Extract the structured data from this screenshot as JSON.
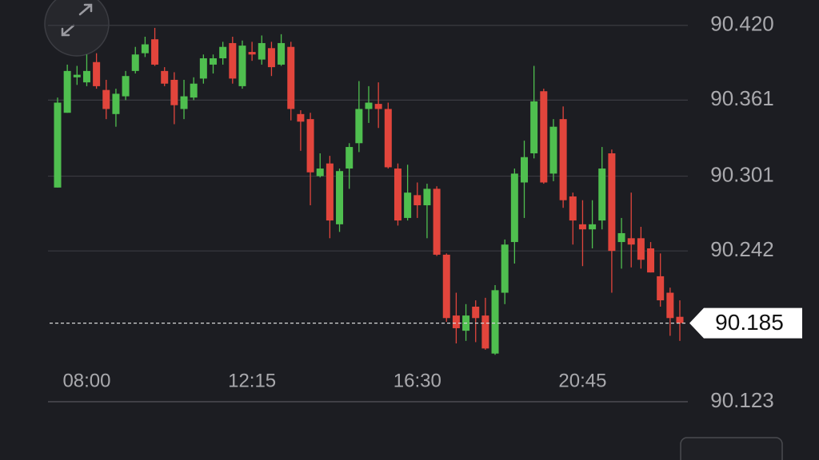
{
  "chart_data": {
    "type": "candlestick",
    "categories": [
      null,
      null,
      null,
      "08:00",
      null,
      null,
      null,
      null,
      null,
      null,
      null,
      null,
      null,
      null,
      null,
      null,
      null,
      null,
      null,
      null,
      "12:15",
      null,
      null,
      null,
      null,
      null,
      null,
      null,
      null,
      null,
      null,
      null,
      null,
      null,
      null,
      null,
      null,
      "16:30",
      null,
      null,
      null,
      null,
      null,
      null,
      null,
      null,
      null,
      null,
      null,
      null,
      null,
      null,
      null,
      null,
      "20:45",
      null,
      null,
      null,
      null,
      null,
      null,
      null,
      null,
      null,
      null
    ],
    "open": [
      90.292,
      90.351,
      90.379,
      90.375,
      90.391,
      90.369,
      90.35,
      90.364,
      90.384,
      90.398,
      90.409,
      90.384,
      90.377,
      90.354,
      90.363,
      90.378,
      90.389,
      90.394,
      90.406,
      90.372,
      90.399,
      90.393,
      90.402,
      90.389,
      90.403,
      90.35,
      90.346,
      90.301,
      90.311,
      90.263,
      90.307,
      90.327,
      90.354,
      90.358,
      90.354,
      90.307,
      90.268,
      90.286,
      90.278,
      90.291,
      90.239,
      90.191,
      90.179,
      90.198,
      90.191,
      90.161,
      90.209,
      90.249,
      90.296,
      90.319,
      90.368,
      90.303,
      90.346,
      90.285,
      90.263,
      90.259,
      90.266,
      90.319,
      90.249,
      90.252,
      90.252,
      90.244,
      90.222,
      90.209,
      90.19
    ],
    "high": [
      90.363,
      90.389,
      90.388,
      90.397,
      90.398,
      90.377,
      90.37,
      90.384,
      90.403,
      90.411,
      90.418,
      90.387,
      90.383,
      90.377,
      90.379,
      90.397,
      90.397,
      90.407,
      90.411,
      90.408,
      90.407,
      90.412,
      90.407,
      90.413,
      90.407,
      90.353,
      90.351,
      90.319,
      90.317,
      90.307,
      90.327,
      90.376,
      90.372,
      90.375,
      90.359,
      90.311,
      90.31,
      90.296,
      90.295,
      90.293,
      90.24,
      90.209,
      90.2,
      90.203,
      90.205,
      90.215,
      90.251,
      90.307,
      90.329,
      90.388,
      90.37,
      90.346,
      90.356,
      90.288,
      90.282,
      90.282,
      90.324,
      90.322,
      90.268,
      90.288,
      90.261,
      90.249,
      90.24,
      90.213,
      90.203
    ],
    "low": [
      90.292,
      90.351,
      90.373,
      90.372,
      90.37,
      90.346,
      90.34,
      90.361,
      90.382,
      90.395,
      90.388,
      90.372,
      90.342,
      90.346,
      90.361,
      90.374,
      90.382,
      90.389,
      90.374,
      90.37,
      90.392,
      90.389,
      90.38,
      90.388,
      90.345,
      90.321,
      90.278,
      90.3,
      90.252,
      90.257,
      90.291,
      90.32,
      90.343,
      90.339,
      90.307,
      90.262,
      90.266,
      90.268,
      90.252,
      90.238,
      90.186,
      90.169,
      90.171,
      90.17,
      90.164,
      90.16,
      90.2,
      90.232,
      90.268,
      90.315,
      90.295,
      90.297,
      90.276,
      90.247,
      90.23,
      90.244,
      90.259,
      90.209,
      90.228,
      90.229,
      90.228,
      90.225,
      90.198,
      90.175,
      90.171
    ],
    "close": [
      90.359,
      90.384,
      90.381,
      90.384,
      90.372,
      90.354,
      90.366,
      90.38,
      90.397,
      90.405,
      90.389,
      90.374,
      90.357,
      90.364,
      90.374,
      90.394,
      90.394,
      90.403,
      90.378,
      90.404,
      90.397,
      90.406,
      90.387,
      90.406,
      90.354,
      90.344,
      90.304,
      90.307,
      90.266,
      90.305,
      90.324,
      90.354,
      90.359,
      90.354,
      90.308,
      90.266,
      90.288,
      90.278,
      90.291,
      90.239,
      90.189,
      90.181,
      90.191,
      90.189,
      90.165,
      90.211,
      90.247,
      90.303,
      90.316,
      90.36,
      90.296,
      90.34,
      90.282,
      90.266,
      90.259,
      90.263,
      90.307,
      90.242,
      90.256,
      90.247,
      90.235,
      90.225,
      90.203,
      90.189,
      90.185
    ],
    "up_color": "#4fbf4f",
    "down_color": "#e2453c",
    "last_price": 90.185,
    "ylim": [
      90.123,
      90.44
    ],
    "yticks": [
      {
        "value": 90.42,
        "label": "90.420"
      },
      90.361,
      90.301,
      90.242,
      90.123
    ],
    "grid": true
  }
}
